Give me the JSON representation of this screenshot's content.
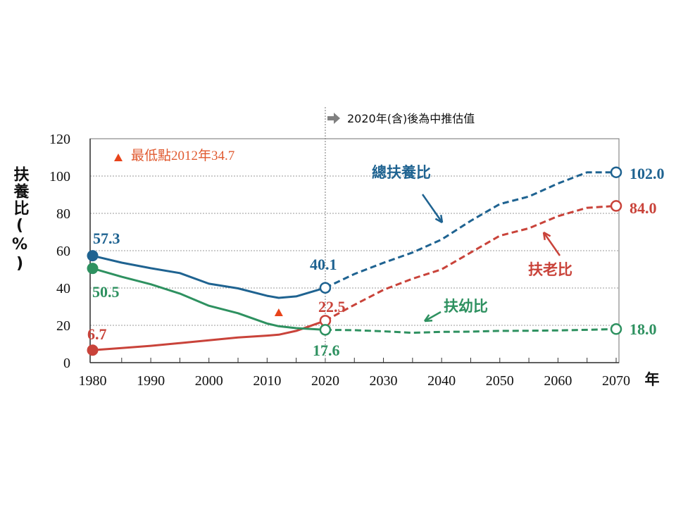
{
  "chart_data": {
    "type": "line",
    "title": "",
    "xlabel": "年",
    "ylabel": "扶養比(%)",
    "xlim": [
      1980,
      2070
    ],
    "ylim": [
      0,
      120
    ],
    "x_ticks": [
      "1980",
      "1990",
      "2000",
      "2010",
      "2020",
      "2030",
      "2040",
      "2050",
      "2060",
      "2070"
    ],
    "y_ticks": [
      "0",
      "20",
      "40",
      "60",
      "80",
      "100",
      "120"
    ],
    "grid": true,
    "projection_note": "2020年(含)後為中推估值",
    "projection_start": 2020,
    "min_annotation": {
      "text": "最低點2012年34.7",
      "x": 2012,
      "y": 34.7
    },
    "series": [
      {
        "name": "總扶養比",
        "color": "#1f6391",
        "x": [
          1980,
          1985,
          1990,
          1995,
          2000,
          2005,
          2010,
          2012,
          2015,
          2020,
          2025,
          2030,
          2035,
          2040,
          2045,
          2050,
          2055,
          2060,
          2065,
          2070
        ],
        "y": [
          57.3,
          53.6,
          50.6,
          48,
          42.3,
          39.8,
          35.8,
          34.7,
          35.5,
          40.1,
          47.5,
          53.5,
          59,
          66,
          76,
          85,
          89,
          96,
          102,
          102.0
        ],
        "labels": {
          "1980": "57.3",
          "2020": "40.1",
          "2070": "102.0"
        }
      },
      {
        "name": "扶老比",
        "color": "#c9433a",
        "x": [
          1980,
          1985,
          1990,
          1995,
          2000,
          2005,
          2010,
          2012,
          2015,
          2020,
          2025,
          2030,
          2035,
          2040,
          2045,
          2050,
          2055,
          2060,
          2065,
          2070
        ],
        "y": [
          6.7,
          7.8,
          9,
          10.5,
          12,
          13.5,
          14.5,
          15,
          17,
          22.5,
          31,
          39,
          45,
          50,
          59,
          68,
          72,
          78.5,
          83,
          84.0
        ],
        "labels": {
          "1980": "6.7",
          "2020": "22.5",
          "2070": "84.0"
        }
      },
      {
        "name": "扶幼比",
        "color": "#2e9160",
        "x": [
          1980,
          1985,
          1990,
          1995,
          2000,
          2005,
          2010,
          2012,
          2015,
          2020,
          2025,
          2030,
          2035,
          2040,
          2045,
          2050,
          2055,
          2060,
          2065,
          2070
        ],
        "y": [
          50.5,
          46,
          42,
          37,
          30.5,
          26.5,
          21,
          19.5,
          18.5,
          17.6,
          17.4,
          16.8,
          16,
          16.5,
          16.6,
          17,
          17.1,
          17.3,
          17.6,
          18.0
        ],
        "labels": {
          "1980": "50.5",
          "2020": "17.6",
          "2070": "18.0"
        }
      }
    ]
  }
}
